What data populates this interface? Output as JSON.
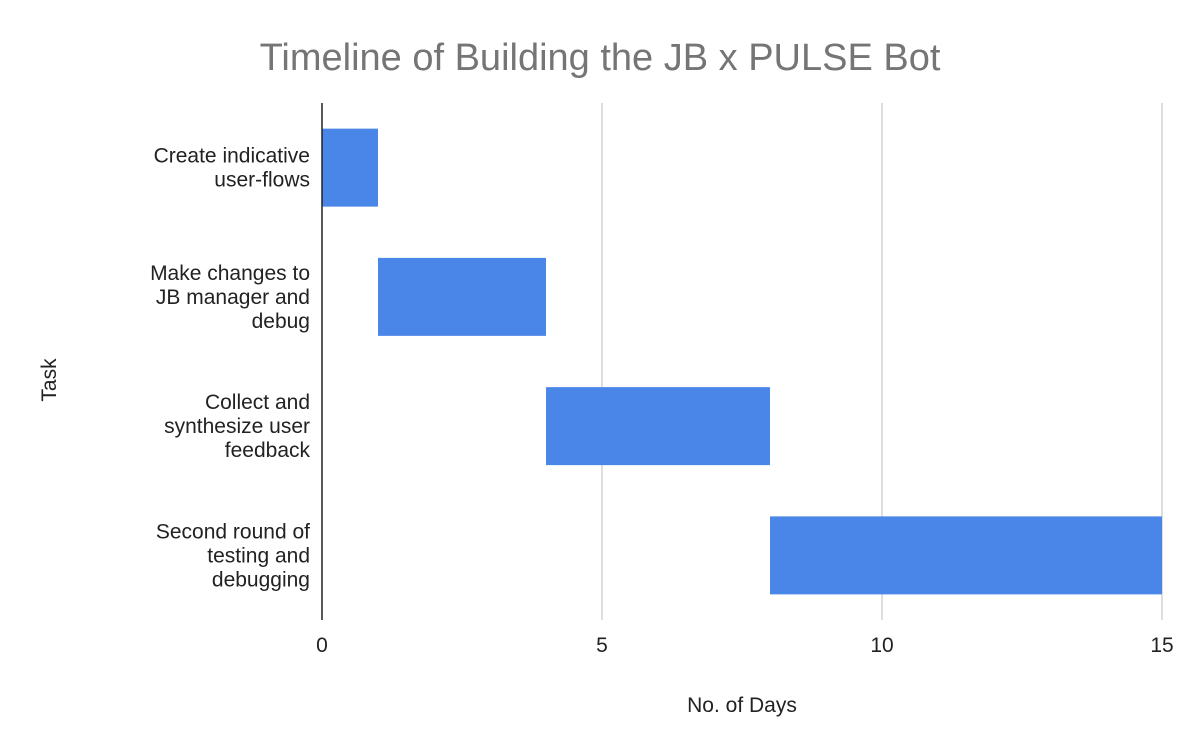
{
  "chart_data": {
    "type": "bar",
    "orientation": "horizontal",
    "stacked": true,
    "title": "Timeline of Building the JB  x PULSE Bot",
    "xlabel": "No. of Days",
    "ylabel": "Task",
    "xlim": [
      0,
      15
    ],
    "xticks": [
      0,
      5,
      10,
      15
    ],
    "grid": true,
    "legend": "none",
    "categories": [
      [
        "Create indicative",
        "user-flows"
      ],
      [
        "Make changes to",
        "JB manager and",
        "debug"
      ],
      [
        "Collect and",
        "synthesize user",
        "feedback"
      ],
      [
        "Second round of",
        "testing and",
        "debugging"
      ]
    ],
    "tasks": [
      {
        "start": 0,
        "end": 1
      },
      {
        "start": 1,
        "end": 4
      },
      {
        "start": 4,
        "end": 8
      },
      {
        "start": 8,
        "end": 15
      }
    ],
    "bar_color": "#4a86e8"
  }
}
